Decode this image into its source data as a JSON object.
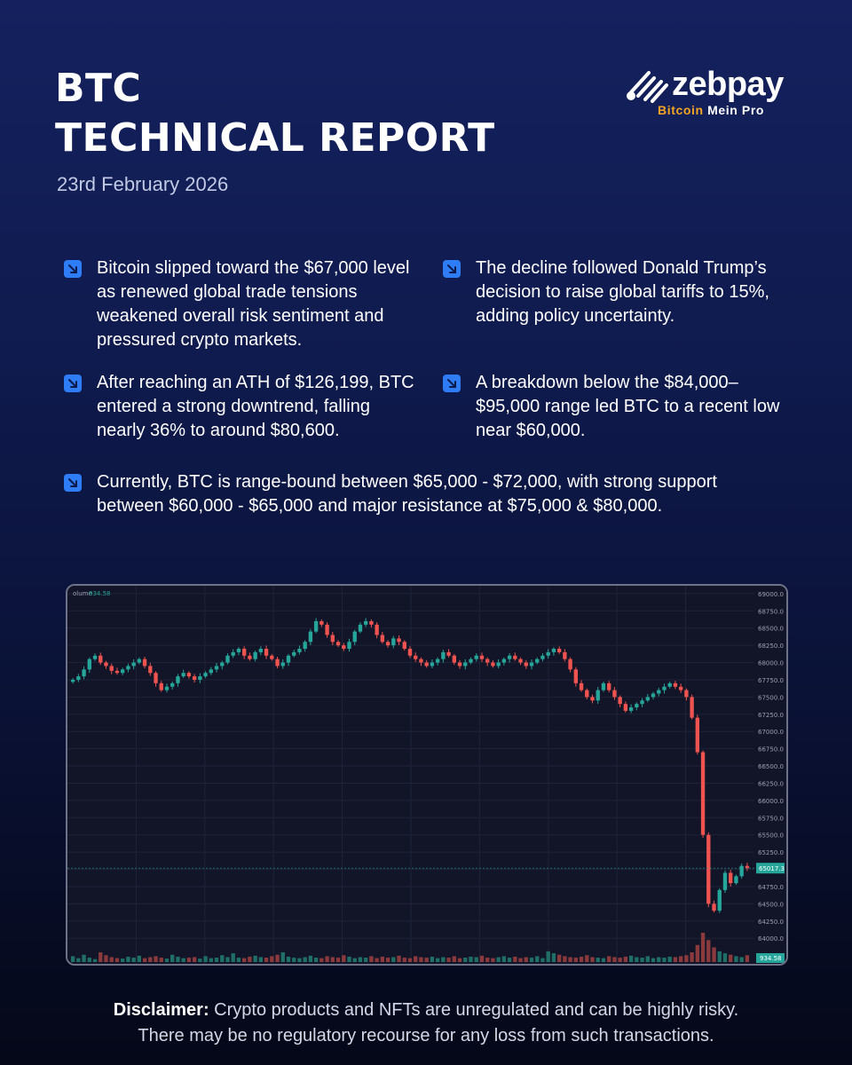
{
  "header": {
    "title_line1": "BTC",
    "title_line2": "TECHNICAL REPORT",
    "date": "23rd February 2026"
  },
  "brand": {
    "name": "zebpay",
    "tagline_part1": "Bitcoin",
    "tagline_part2": "Mein Pro",
    "tagline_color": "#f5a623"
  },
  "bullets": [
    {
      "icon": "arrow-down-right-icon",
      "text": "Bitcoin slipped toward the $67,000 level as renewed global trade tensions weakened overall risk sentiment and pressured crypto markets."
    },
    {
      "icon": "arrow-down-right-icon",
      "text": "The decline followed Donald Trump’s decision to raise global tariffs to 15%, adding policy uncertainty."
    },
    {
      "icon": "arrow-down-right-icon",
      "text": "After reaching an ATH of $126,199, BTC entered a strong downtrend, falling nearly 36% to around $80,600."
    },
    {
      "icon": "arrow-down-right-icon",
      "text": "A breakdown below the $84,000–$95,000 range led BTC to a recent low near $60,000."
    },
    {
      "icon": "arrow-down-right-icon",
      "text": "Currently, BTC is range-bound between $65,000 - $72,000, with strong support between $60,000 - $65,000 and major resistance at $75,000 & $80,000."
    }
  ],
  "chart_data": {
    "type": "candlestick",
    "volume_label": "olume",
    "volume_value": "934.58",
    "price_tag": "65017.3",
    "volume_tag": "934.58",
    "ylim": [
      63900,
      69050
    ],
    "y_ticks": [
      "69000.0",
      "68750.0",
      "68500.0",
      "68250.0",
      "68000.0",
      "67750.0",
      "67500.0",
      "67250.0",
      "67000.0",
      "66750.0",
      "66500.0",
      "66250.0",
      "66000.0",
      "65750.0",
      "65500.0",
      "65250.0",
      "65000.0",
      "64750.0",
      "64500.0",
      "64250.0",
      "64000.0"
    ],
    "close_series": [
      67750,
      67800,
      67900,
      68050,
      68100,
      68000,
      67950,
      67880,
      67850,
      67900,
      67950,
      68000,
      68050,
      67950,
      67850,
      67700,
      67600,
      67650,
      67700,
      67800,
      67850,
      67800,
      67750,
      67800,
      67850,
      67900,
      67950,
      68000,
      68100,
      68150,
      68200,
      68100,
      68050,
      68150,
      68200,
      68100,
      68050,
      67950,
      68000,
      68100,
      68150,
      68200,
      68300,
      68450,
      68600,
      68550,
      68400,
      68300,
      68250,
      68200,
      68300,
      68450,
      68550,
      68600,
      68550,
      68400,
      68300,
      68250,
      68350,
      68300,
      68200,
      68100,
      68050,
      68000,
      67950,
      68000,
      68050,
      68150,
      68100,
      68000,
      67950,
      68000,
      68050,
      68100,
      68050,
      68000,
      67950,
      68000,
      68050,
      68100,
      68050,
      68000,
      67950,
      68000,
      68050,
      68100,
      68150,
      68200,
      68150,
      68050,
      67900,
      67700,
      67600,
      67500,
      67450,
      67600,
      67700,
      67600,
      67500,
      67400,
      67300,
      67350,
      67400,
      67450,
      67500,
      67550,
      67600,
      67650,
      67700,
      67650,
      67600,
      67500,
      67200,
      66700,
      65500,
      64500,
      64400,
      64700,
      64950,
      64800,
      64900,
      65050,
      65017
    ],
    "volumes": [
      12,
      8,
      15,
      9,
      6,
      20,
      14,
      10,
      8,
      7,
      11,
      9,
      13,
      8,
      10,
      12,
      9,
      7,
      15,
      11,
      8,
      9,
      10,
      7,
      12,
      8,
      9,
      14,
      10,
      18,
      9,
      8,
      11,
      13,
      10,
      9,
      12,
      15,
      20,
      11,
      9,
      8,
      10,
      13,
      9,
      8,
      12,
      10,
      9,
      14,
      11,
      8,
      10,
      9,
      12,
      8,
      11,
      9,
      10,
      13,
      9,
      8,
      12,
      10,
      9,
      11,
      8,
      10,
      9,
      12,
      8,
      9,
      11,
      10,
      13,
      9,
      8,
      10,
      12,
      9,
      11,
      8,
      10,
      9,
      12,
      8,
      22,
      18,
      15,
      12,
      10,
      9,
      11,
      14,
      10,
      9,
      8,
      12,
      10,
      9,
      11,
      13,
      10,
      9,
      12,
      8,
      10,
      9,
      11,
      10,
      12,
      14,
      20,
      35,
      60,
      45,
      30,
      22,
      18,
      15,
      12,
      10,
      14
    ]
  },
  "disclaimer": {
    "label": "Disclaimer:",
    "line1": " Crypto products and NFTs are unregulated and can be highly risky.",
    "line2": "There may be no regulatory recourse for any loss from such transactions."
  }
}
